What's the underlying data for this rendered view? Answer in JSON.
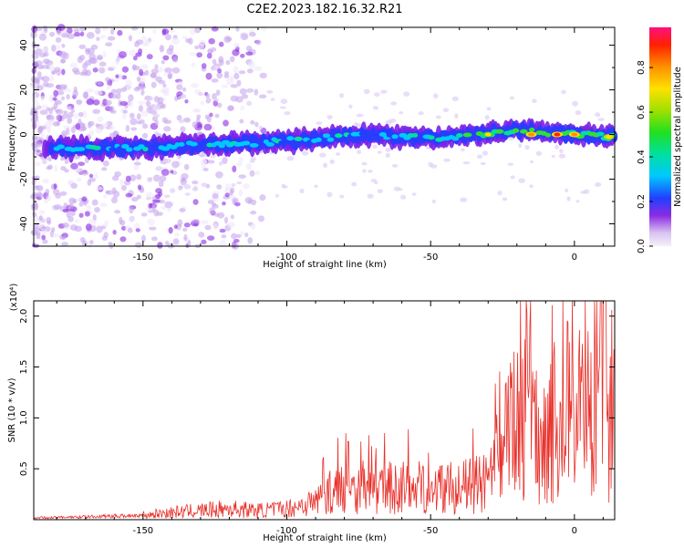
{
  "title": "C2E2.2023.182.16.32.R21",
  "chart_data": [
    {
      "type": "heatmap",
      "xlabel": "Height of straight line (km)",
      "ylabel": "Frequency (Hz)",
      "xlim": [
        -188,
        14
      ],
      "ylim": [
        -50,
        48
      ],
      "xticks": [
        -150,
        -100,
        -50,
        0
      ],
      "yticks": [
        40,
        20,
        0,
        -20,
        -40
      ],
      "colorbar": {
        "label": "Normalized spectral amplitude",
        "range": [
          0,
          0.98
        ],
        "ticks": [
          0.0,
          0.2,
          0.4,
          0.6,
          0.8
        ]
      },
      "ridge": {
        "description_points": [
          {
            "x": -183,
            "y": -6
          },
          {
            "x": -150,
            "y": -6
          },
          {
            "x": -100,
            "y": -3
          },
          {
            "x": -70,
            "y": 0
          },
          {
            "x": -50,
            "y": -2
          },
          {
            "x": -20,
            "y": 2
          },
          {
            "x": 0,
            "y": 0
          },
          {
            "x": 14,
            "y": -1
          }
        ],
        "high_amplitude": [
          {
            "x": -30,
            "y": 0,
            "amplitude": 0.75
          },
          {
            "x": -15,
            "y": 0,
            "amplitude": 0.85
          },
          {
            "x": -6,
            "y": 0,
            "amplitude": 0.95
          },
          {
            "x": 0,
            "y": 0,
            "amplitude": 0.9
          },
          {
            "x": 12,
            "y": -1,
            "amplitude": 0.8
          }
        ]
      },
      "grid": false
    },
    {
      "type": "line",
      "xlabel": "Height of straight line (km)",
      "ylabel": "SNR (10 * v/v)",
      "y_multiplier": "(x10⁴)",
      "xlim": [
        -188,
        14
      ],
      "ylim": [
        0,
        2.15
      ],
      "xticks": [
        -150,
        -100,
        -50,
        0
      ],
      "yticks": [
        0.5,
        1.0,
        1.5,
        2.0
      ],
      "color": "#e8302a",
      "series": [
        {
          "x": [
            -188,
            -170,
            -150,
            -140,
            -130,
            -120,
            -110,
            -100,
            -90,
            -85,
            -80,
            -70,
            -60,
            -50,
            -40,
            -30,
            -26,
            -24,
            -20,
            -17,
            -16,
            -15,
            -12,
            -10,
            -5,
            0,
            5,
            8,
            10,
            12,
            14
          ],
          "y": [
            0.02,
            0.03,
            0.05,
            0.08,
            0.1,
            0.12,
            0.1,
            0.12,
            0.2,
            0.3,
            0.35,
            0.32,
            0.35,
            0.35,
            0.35,
            0.4,
            0.6,
            0.9,
            1.0,
            1.3,
            2.1,
            1.2,
            0.8,
            1.0,
            1.1,
            1.3,
            1.2,
            1.1,
            2.1,
            1.0,
            1.4
          ]
        }
      ],
      "grid": false
    }
  ]
}
